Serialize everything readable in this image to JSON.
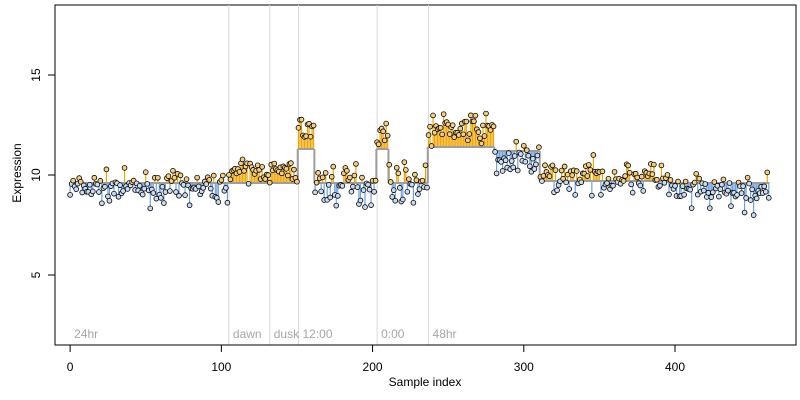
{
  "chart_data": {
    "type": "scatter",
    "title": "",
    "xlabel": "Sample index",
    "ylabel": "Expression",
    "xlim": [
      -10,
      480
    ],
    "ylim": [
      1.5,
      18.5
    ],
    "x_ticks": [
      0,
      100,
      200,
      300,
      400
    ],
    "y_ticks": [
      5,
      10,
      15
    ],
    "grid": false,
    "legend": "none",
    "reference_level": 9.6,
    "phase_markers": [
      {
        "x": 0,
        "label": "24hr",
        "line": false
      },
      {
        "x": 105,
        "label": "dawn",
        "line": true
      },
      {
        "x": 132,
        "label": "dusk",
        "line": true
      },
      {
        "x": 151,
        "label": "12:00",
        "line": true
      },
      {
        "x": 203,
        "label": "0:00",
        "line": true
      },
      {
        "x": 237,
        "label": "48hr",
        "line": true
      }
    ],
    "segments": [
      {
        "x0": 0,
        "x1": 104,
        "level": 9.6,
        "mean": 9.35,
        "spread": 0.35
      },
      {
        "x0": 105,
        "x1": 131,
        "level": 9.6,
        "mean": 10.2,
        "spread": 0.25
      },
      {
        "x0": 132,
        "x1": 150,
        "level": 9.6,
        "mean": 10.15,
        "spread": 0.3
      },
      {
        "x0": 151,
        "x1": 161,
        "level": 11.3,
        "mean": 12.3,
        "spread": 0.3
      },
      {
        "x0": 162,
        "x1": 202,
        "level": 9.6,
        "mean": 9.5,
        "spread": 0.5
      },
      {
        "x0": 203,
        "x1": 210,
        "level": 11.3,
        "mean": 12.1,
        "spread": 0.3
      },
      {
        "x0": 211,
        "x1": 236,
        "level": 9.6,
        "mean": 9.6,
        "spread": 0.45
      },
      {
        "x0": 237,
        "x1": 280,
        "level": 11.4,
        "mean": 12.3,
        "spread": 0.35
      },
      {
        "x0": 281,
        "x1": 310,
        "level": 11.2,
        "mean": 10.7,
        "spread": 0.45
      },
      {
        "x0": 311,
        "x1": 395,
        "level": 9.7,
        "mean": 9.9,
        "spread": 0.4
      },
      {
        "x0": 396,
        "x1": 462,
        "level": 9.6,
        "mean": 9.1,
        "spread": 0.45
      }
    ],
    "colors": {
      "above_level": "#f0a500",
      "below_level": "#6fa1e0",
      "level_line": "#9e9e9e",
      "point_fill": "#f7cf7c",
      "point_stroke": "#000000",
      "phase_line": "#d9d9d9",
      "axis": "#000000"
    }
  }
}
